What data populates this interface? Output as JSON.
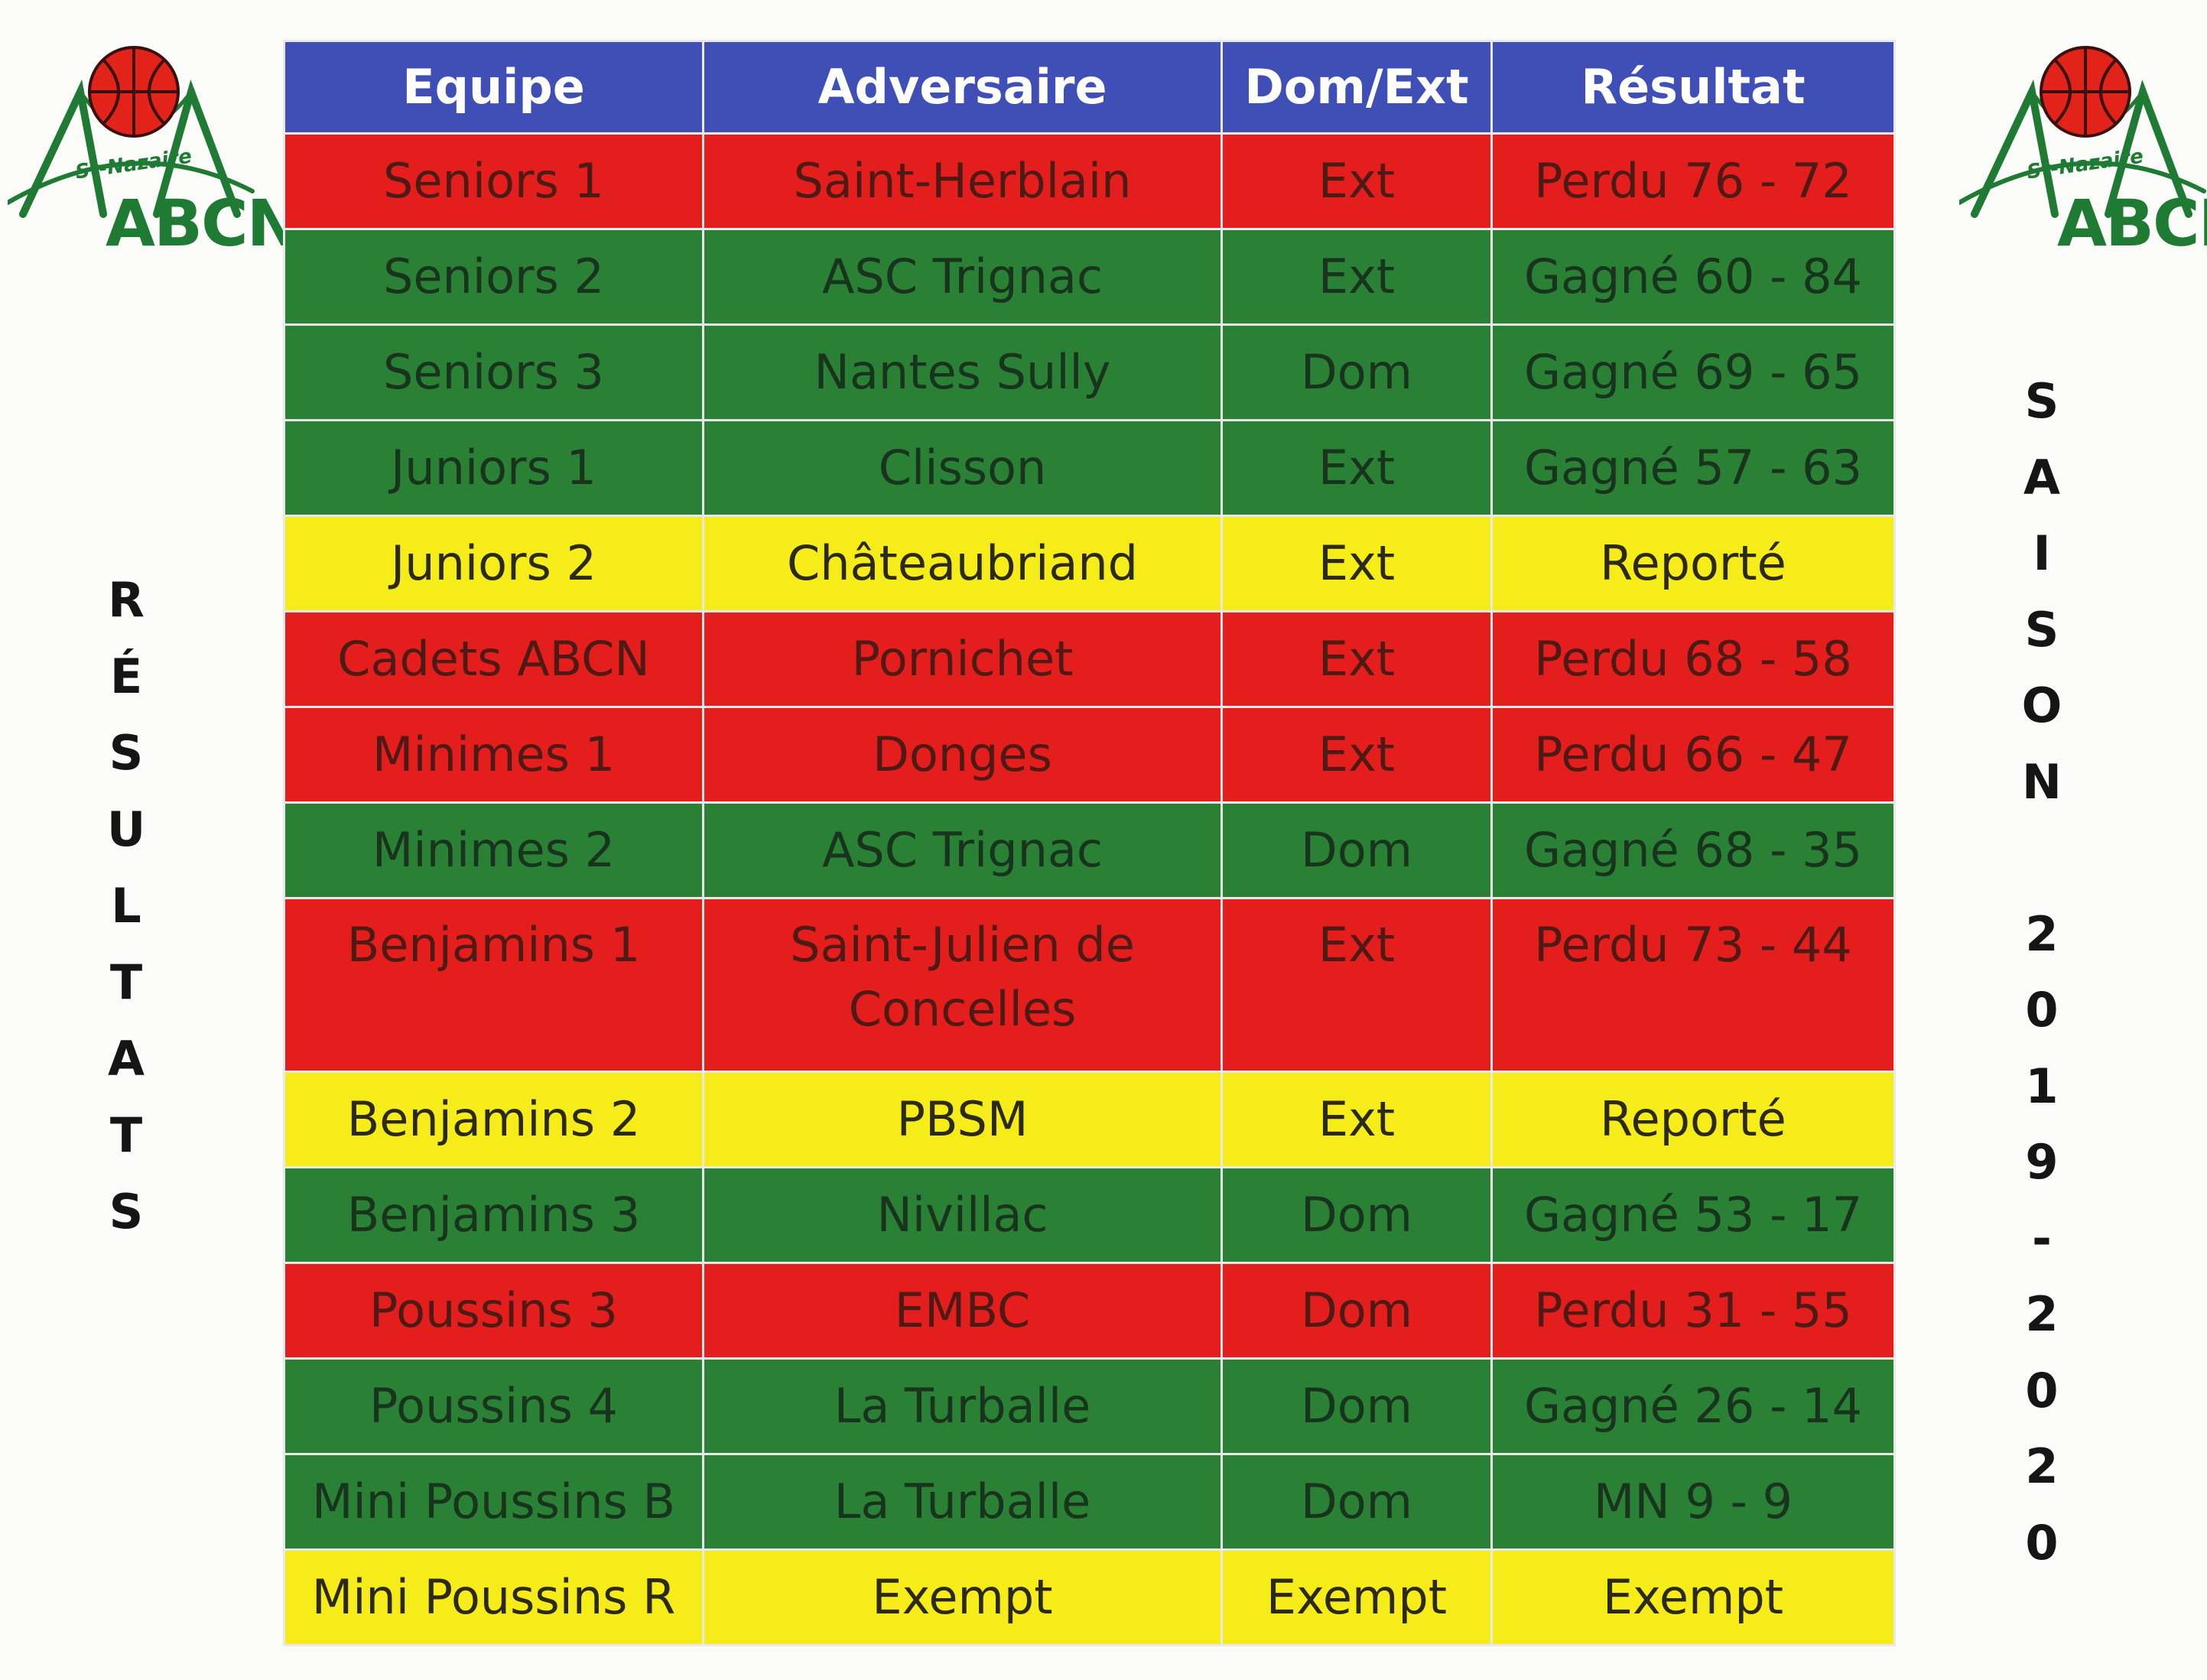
{
  "logo": {
    "text": "ABCN",
    "subtitle": "St-Nazaire"
  },
  "left_vertical_label": "RÉSULTATS",
  "right_vertical_label": "SAISON 2019-2020",
  "table": {
    "columns": [
      "Equipe",
      "Adversaire",
      "Dom/Ext",
      "Résultat"
    ],
    "rows": [
      {
        "status": "lost",
        "team": "Seniors 1",
        "opponent": "Saint-Herblain",
        "venue": "Ext",
        "result": "Perdu 76 - 72"
      },
      {
        "status": "won",
        "team": "Seniors 2",
        "opponent": "ASC Trignac",
        "venue": "Ext",
        "result": "Gagné 60 - 84"
      },
      {
        "status": "won",
        "team": "Seniors 3",
        "opponent": "Nantes Sully",
        "venue": "Dom",
        "result": "Gagné 69 - 65"
      },
      {
        "status": "won",
        "team": "Juniors 1",
        "opponent": "Clisson",
        "venue": "Ext",
        "result": "Gagné 57 - 63"
      },
      {
        "status": "postponed",
        "team": "Juniors 2",
        "opponent": "Châteaubriand",
        "venue": "Ext",
        "result": "Reporté"
      },
      {
        "status": "lost",
        "team": "Cadets ABCN",
        "opponent": "Pornichet",
        "venue": "Ext",
        "result": "Perdu 68 - 58"
      },
      {
        "status": "lost",
        "team": "Minimes 1",
        "opponent": "Donges",
        "venue": "Ext",
        "result": "Perdu 66 -  47"
      },
      {
        "status": "won",
        "team": "Minimes 2",
        "opponent": "ASC Trignac",
        "venue": "Dom",
        "result": "Gagné 68 - 35"
      },
      {
        "status": "lost",
        "team": "Benjamins 1",
        "opponent": "Saint-Julien de Concelles",
        "venue": "Ext",
        "result": "Perdu 73 - 44"
      },
      {
        "status": "postponed",
        "team": "Benjamins 2",
        "opponent": "PBSM",
        "venue": "Ext",
        "result": "Reporté"
      },
      {
        "status": "won",
        "team": "Benjamins 3",
        "opponent": "Nivillac",
        "venue": "Dom",
        "result": "Gagné 53 - 17"
      },
      {
        "status": "lost",
        "team": "Poussins 3",
        "opponent": "EMBC",
        "venue": "Dom",
        "result": "Perdu 31 - 55"
      },
      {
        "status": "won",
        "team": "Poussins 4",
        "opponent": "La Turballe",
        "venue": "Dom",
        "result": "Gagné 26 - 14"
      },
      {
        "status": "won",
        "team": "Mini Poussins B",
        "opponent": "La Turballe",
        "venue": "Dom",
        "result": "MN  9 - 9"
      },
      {
        "status": "postponed",
        "team": "Mini Poussins R",
        "opponent": "Exempt",
        "venue": "Exempt",
        "result": "Exempt"
      }
    ]
  },
  "colors": {
    "header": "#3f4fb5",
    "lost": "#e31e1c",
    "won": "#2a8136",
    "postponed": "#f6ec1a",
    "logo_green": "#1f7a34",
    "ball": "#e2231a"
  },
  "icons": [
    "basketball-icon",
    "bridge-icon"
  ]
}
